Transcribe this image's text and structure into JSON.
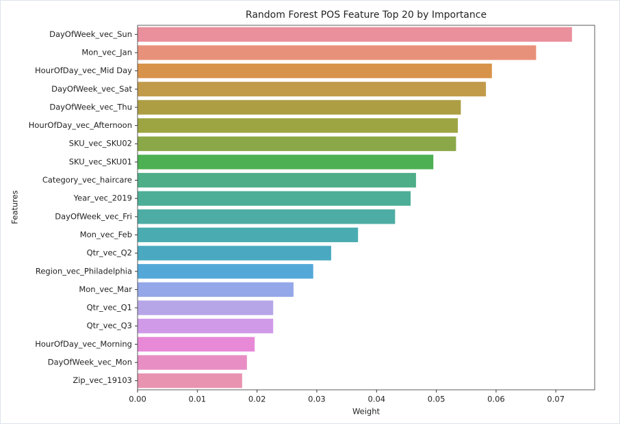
{
  "chart_data": {
    "type": "barh",
    "title": "Random Forest POS Feature Top 20 by Importance",
    "x_label": "Weight",
    "y_label": "Features",
    "categories": [
      "DayOfWeek_vec_Sun",
      "Mon_vec_Jan",
      "HourOfDay_vec_Mid Day",
      "DayOfWeek_vec_Sat",
      "DayOfWeek_vec_Thu",
      "HourOfDay_vec_Afternoon",
      "SKU_vec_SKU02",
      "SKU_vec_SKU01",
      "Category_vec_haircare",
      "Year_vec_2019",
      "DayOfWeek_vec_Fri",
      "Mon_vec_Feb",
      "Qtr_vec_Q2",
      "Region_vec_Philadelphia",
      "Mon_vec_Mar",
      "Qtr_vec_Q1",
      "Qtr_vec_Q3",
      "HourOfDay_vec_Morning",
      "DayOfWeek_vec_Mon",
      "Zip_vec_19103"
    ],
    "values": [
      0.0727,
      0.0667,
      0.0593,
      0.0583,
      0.0541,
      0.0536,
      0.0533,
      0.0495,
      0.0466,
      0.0457,
      0.0431,
      0.0369,
      0.0324,
      0.0294,
      0.0261,
      0.0227,
      0.0227,
      0.0196,
      0.0183,
      0.0175
    ],
    "colors": [
      "#ea8f9c",
      "#e8917a",
      "#d8934a",
      "#c29b4a",
      "#ad9e44",
      "#9da543",
      "#8aa847",
      "#4db052",
      "#4eae88",
      "#4dae97",
      "#4daca4",
      "#4aacb0",
      "#4aa9c0",
      "#54a8d8",
      "#94a7e8",
      "#b6a6e8",
      "#d09ae8",
      "#e889d8",
      "#e88ec5",
      "#e893b0"
    ],
    "xlim": [
      0,
      0.0765
    ],
    "xticks": [
      {
        "value": 0,
        "label": "0.00"
      },
      0.01,
      0.02,
      0.03,
      0.04,
      0.05,
      0.06,
      0.07
    ]
  }
}
